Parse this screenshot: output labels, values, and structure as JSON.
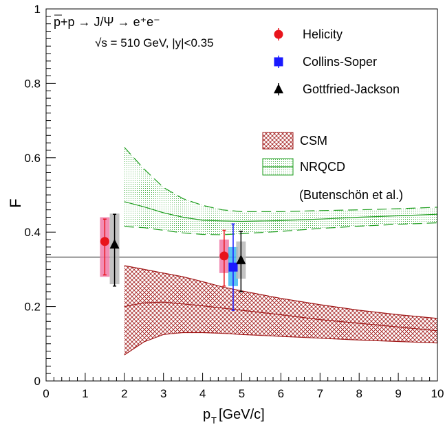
{
  "chart_data": {
    "type": "scatter",
    "title_lines": [
      "p+p → J/Ψ → e⁺e⁻",
      "√s = 510 GeV, |y|<0.35"
    ],
    "xlabel": "p_T [GeV/c]",
    "ylabel": "F",
    "xlim": [
      0,
      10
    ],
    "ylim": [
      0,
      1
    ],
    "x_ticks": [
      0,
      1,
      2,
      3,
      4,
      5,
      6,
      7,
      8,
      9,
      10
    ],
    "y_ticks": [
      0,
      0.2,
      0.4,
      0.6,
      0.8,
      1
    ],
    "y_tick_labels": [
      "0",
      "0.2",
      "0.4",
      "0.6",
      "0.8",
      "1"
    ],
    "reference_line": 0.333,
    "series": [
      {
        "name": "Helicity",
        "marker": "circle",
        "color": "#e8141c",
        "sys_color": "#f07aa8",
        "points": [
          {
            "x": 1.5,
            "y": 0.375,
            "stat": [
              0.285,
              0.435
            ],
            "sys": [
              0.28,
              0.44
            ]
          },
          {
            "x": 4.55,
            "y": 0.336,
            "stat": [
              0.255,
              0.405
            ],
            "sys": [
              0.29,
              0.38
            ]
          }
        ]
      },
      {
        "name": "Collins-Soper",
        "marker": "square",
        "color": "#1a1aff",
        "sys_color": "#3cb8f0",
        "points": [
          {
            "x": 4.78,
            "y": 0.306,
            "stat": [
              0.19,
              0.422
            ],
            "sys": [
              0.255,
              0.36
            ]
          }
        ]
      },
      {
        "name": "Gottfried-Jackson",
        "marker": "triangle",
        "color": "#000000",
        "sys_color": "#b8b8b8",
        "points": [
          {
            "x": 1.75,
            "y": 0.367,
            "stat": [
              0.255,
              0.448
            ],
            "sys": [
              0.26,
              0.45
            ]
          },
          {
            "x": 4.98,
            "y": 0.325,
            "stat": [
              0.24,
              0.402
            ],
            "sys": [
              0.275,
              0.375
            ]
          }
        ]
      }
    ],
    "bands": [
      {
        "name": "CSM",
        "color": "#a01818",
        "x": [
          2,
          2.5,
          3,
          3.5,
          4,
          4.5,
          5,
          6,
          7,
          8,
          9,
          10
        ],
        "upper": [
          0.31,
          0.3,
          0.29,
          0.28,
          0.267,
          0.253,
          0.242,
          0.222,
          0.205,
          0.19,
          0.178,
          0.168
        ],
        "central": [
          0.2,
          0.21,
          0.212,
          0.207,
          0.202,
          0.196,
          0.19,
          0.178,
          0.165,
          0.155,
          0.145,
          0.135
        ],
        "lower": [
          0.07,
          0.105,
          0.125,
          0.13,
          0.13,
          0.128,
          0.125,
          0.12,
          0.115,
          0.11,
          0.106,
          0.102
        ]
      },
      {
        "name": "NRQCD",
        "color": "#1e9e1e",
        "x": [
          2,
          2.5,
          3,
          3.5,
          4,
          4.5,
          5,
          6,
          7,
          8,
          9,
          10
        ],
        "upper": [
          0.628,
          0.57,
          0.52,
          0.49,
          0.472,
          0.46,
          0.455,
          0.455,
          0.458,
          0.46,
          0.463,
          0.467
        ],
        "central": [
          0.482,
          0.468,
          0.452,
          0.44,
          0.432,
          0.43,
          0.429,
          0.431,
          0.435,
          0.44,
          0.444,
          0.448
        ],
        "lower": [
          0.415,
          0.412,
          0.405,
          0.398,
          0.394,
          0.393,
          0.396,
          0.402,
          0.41,
          0.416,
          0.421,
          0.425
        ]
      }
    ],
    "model_note": "(Butenschön et al.)"
  }
}
